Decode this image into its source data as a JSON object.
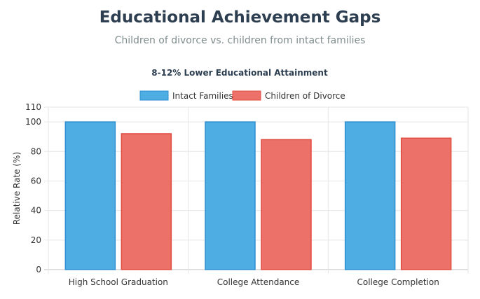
{
  "header": {
    "title": "Educational Achievement Gaps",
    "subtitle": "Children of divorce vs. children from intact families"
  },
  "chart_data": {
    "type": "bar",
    "title": "8-12% Lower Educational Attainment",
    "xlabel": "",
    "ylabel": "Relative Rate (%)",
    "ylim": [
      0,
      110
    ],
    "yticks": [
      0,
      20,
      40,
      60,
      80,
      100,
      110
    ],
    "categories": [
      "High School Graduation",
      "College Attendance",
      "College Completion"
    ],
    "series": [
      {
        "name": "Intact Families",
        "values": [
          100,
          100,
          100
        ],
        "fill": "#4eaee3",
        "stroke": "#2e8fd0"
      },
      {
        "name": "Children of Divorce",
        "values": [
          92,
          88,
          89
        ],
        "fill": "#ec7168",
        "stroke": "#e04c40"
      }
    ],
    "legend_position": "top-center",
    "grid": true
  }
}
